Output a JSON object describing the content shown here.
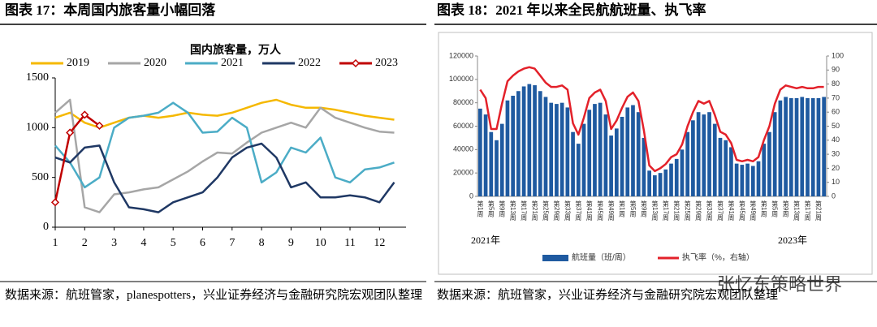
{
  "figures": [
    {
      "title": "图表 17：本周国内旅客量小幅回落",
      "source": "数据来源：航班管家，planespotters，兴业证券经济与金融研究院宏观团队整理"
    },
    {
      "title": "图表 18：2021 年以来全民航航班量、执飞率",
      "source": "数据来源：航班管家，兴业证券经济与金融研究院宏观团队整理"
    }
  ],
  "watermark": "张忆东策略世界",
  "chart_data": [
    {
      "type": "line",
      "title": "国内旅客量，万人",
      "x": [
        1,
        1.5,
        2,
        2.5,
        3,
        3.5,
        4,
        4.5,
        5,
        5.5,
        6,
        6.5,
        7,
        7.5,
        8,
        8.5,
        9,
        9.5,
        10,
        10.5,
        11,
        11.5,
        12,
        12.5
      ],
      "xlim": [
        1,
        12.9
      ],
      "xticks": [
        1,
        2,
        3,
        4,
        5,
        6,
        7,
        8,
        9,
        10,
        11,
        12
      ],
      "ylim": [
        0,
        1500
      ],
      "yticks": [
        0,
        500,
        1000,
        1500
      ],
      "series": [
        {
          "name": "2019",
          "color": "#f5b800",
          "values": [
            1100,
            1150,
            1050,
            1000,
            1050,
            1100,
            1120,
            1100,
            1120,
            1150,
            1130,
            1120,
            1150,
            1200,
            1250,
            1280,
            1230,
            1200,
            1200,
            1180,
            1150,
            1120,
            1100,
            1080
          ]
        },
        {
          "name": "2020",
          "color": "#a6a6a6",
          "values": [
            1150,
            1280,
            200,
            150,
            330,
            350,
            380,
            400,
            480,
            560,
            660,
            750,
            740,
            850,
            950,
            1000,
            1050,
            1000,
            1200,
            1100,
            1050,
            1000,
            960,
            950
          ]
        },
        {
          "name": "2021",
          "color": "#4bacc6",
          "values": [
            820,
            650,
            400,
            500,
            1000,
            1100,
            1120,
            1150,
            1250,
            1150,
            950,
            960,
            1100,
            1000,
            450,
            550,
            800,
            750,
            900,
            500,
            450,
            580,
            600,
            650
          ]
        },
        {
          "name": "2022",
          "color": "#1f3864",
          "values": [
            700,
            650,
            800,
            820,
            450,
            200,
            180,
            150,
            250,
            300,
            350,
            500,
            700,
            800,
            840,
            700,
            400,
            450,
            300,
            300,
            320,
            300,
            250,
            450
          ]
        },
        {
          "name": "2023",
          "color": "#c00000",
          "marker": "diamond",
          "values": [
            250,
            950,
            1130,
            1020,
            null,
            null,
            null,
            null,
            null,
            null,
            null,
            null,
            null,
            null,
            null,
            null,
            null,
            null,
            null,
            null,
            null,
            null,
            null,
            null
          ]
        }
      ]
    },
    {
      "type": "bar",
      "categories": [
        "第1周",
        null,
        "第5周",
        null,
        "第9周",
        null,
        "第13周",
        null,
        "第17周",
        null,
        "第21周",
        null,
        "第25周",
        null,
        "第29周",
        null,
        "第33周",
        null,
        "第37周",
        null,
        "第41周",
        null,
        "第45周",
        null,
        "第49周",
        null,
        "第1周",
        null,
        "第5周",
        null,
        "第9周",
        null,
        "第13周",
        null,
        "第17周",
        null,
        "第21周",
        null,
        "第25周",
        null,
        "第29周",
        null,
        "第33周",
        null,
        "第37周",
        null,
        "第41周",
        null,
        "第45周",
        null,
        "第49周",
        null,
        "第1周",
        null,
        "第5周",
        null,
        "第9周",
        null,
        "第13周",
        null,
        "第17周",
        null,
        "第21周",
        null
      ],
      "annotations": [
        "2021年",
        "2023年"
      ],
      "ylim": [
        0,
        120000
      ],
      "yticks": [
        0,
        20000,
        40000,
        60000,
        80000,
        100000,
        120000
      ],
      "y2lim": [
        0,
        100
      ],
      "y2ticks": [
        0,
        10,
        20,
        30,
        40,
        50,
        60,
        70,
        80,
        90,
        100
      ],
      "series": [
        {
          "name": "航班量（班/周）",
          "color": "#1f5aa0",
          "values": [
            75000,
            70000,
            55000,
            48000,
            62000,
            82000,
            86000,
            90000,
            94000,
            96000,
            95000,
            90000,
            85000,
            80000,
            79000,
            80000,
            76000,
            55000,
            45000,
            62000,
            74000,
            79000,
            80000,
            70000,
            52000,
            58000,
            68000,
            76000,
            78000,
            72000,
            50000,
            22000,
            18000,
            20000,
            23000,
            28000,
            32000,
            40000,
            55000,
            65000,
            72000,
            70000,
            72000,
            62000,
            50000,
            48000,
            42000,
            28000,
            27000,
            28000,
            26000,
            30000,
            45000,
            55000,
            72000,
            82000,
            85000,
            84000,
            84000,
            85000,
            84000,
            84000,
            84000,
            85000
          ]
        },
        {
          "name": "执飞率（%，右轴）",
          "color": "#e3212a",
          "axis": "y2",
          "values": [
            76,
            70,
            48,
            48,
            66,
            82,
            86,
            89,
            91,
            92,
            91,
            86,
            81,
            78,
            78,
            79,
            76,
            52,
            44,
            56,
            70,
            74,
            76,
            68,
            48,
            54,
            63,
            71,
            74,
            68,
            47,
            22,
            18,
            20,
            23,
            28,
            30,
            37,
            50,
            60,
            68,
            66,
            68,
            58,
            46,
            44,
            38,
            26,
            25,
            26,
            25,
            28,
            40,
            50,
            66,
            76,
            79,
            78,
            77,
            78,
            77,
            77,
            78,
            78
          ]
        }
      ]
    }
  ]
}
